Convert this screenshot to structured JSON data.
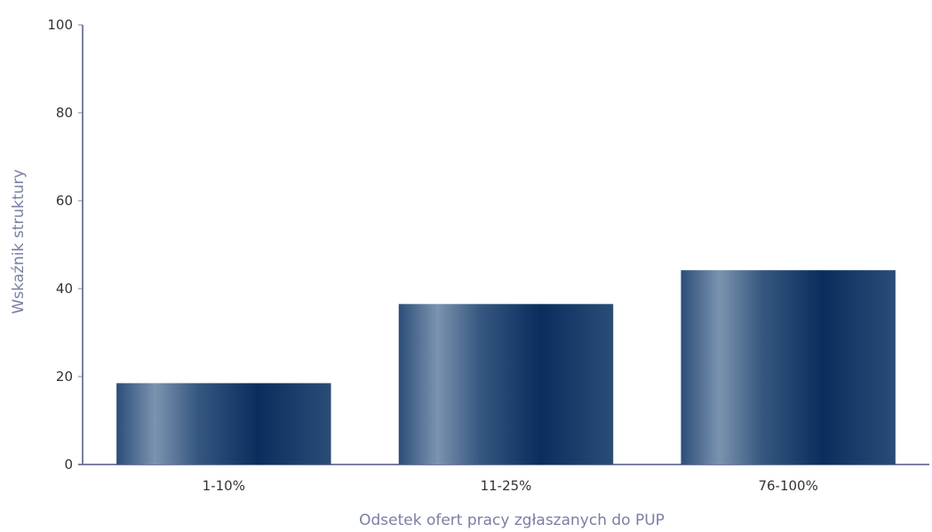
{
  "chart_data": {
    "type": "bar",
    "categories": [
      "1-10%",
      "11-25%",
      "76-100%"
    ],
    "values": [
      18.5,
      36.5,
      44.2
    ],
    "xlabel": "Odsetek ofert pracy zgłaszanych do PUP",
    "ylabel": "Wskaźnik struktury",
    "ylim": [
      0,
      100
    ],
    "yticks": [
      "0",
      "20",
      "40",
      "60",
      "80",
      "100"
    ],
    "grid": false,
    "legend": "none",
    "colors": {
      "bar_dark": "#0a2d5e",
      "bar_light": "#7b93b0",
      "axis": "#7b7fa0"
    }
  }
}
